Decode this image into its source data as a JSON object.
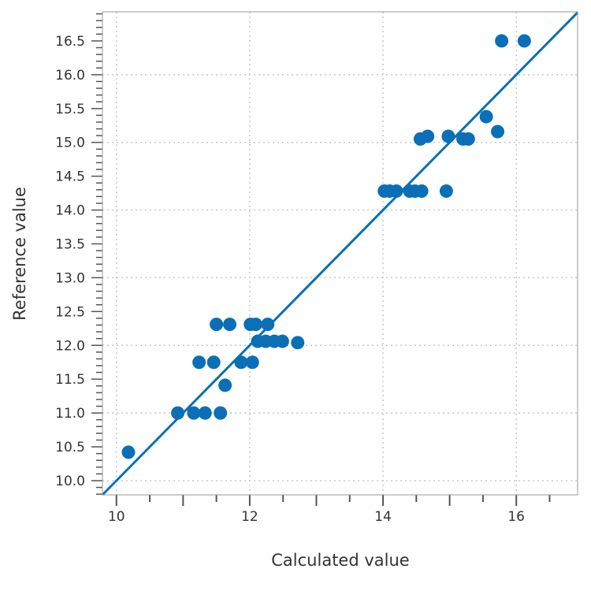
{
  "chart_data": {
    "type": "scatter",
    "xlabel": "Calculated value",
    "ylabel": "Reference value",
    "xlim": [
      9.79,
      16.92
    ],
    "ylim": [
      9.79,
      16.93
    ],
    "x_ticks": [
      "10",
      "12",
      "14",
      "16"
    ],
    "y_ticks": [
      "10.0",
      "10.5",
      "11.0",
      "11.5",
      "12.0",
      "12.5",
      "13.0",
      "13.5",
      "14.0",
      "14.5",
      "15.0",
      "15.5",
      "16.0",
      "16.5"
    ],
    "grid": true,
    "reference_line": "y = x",
    "color": "#0a6fb6",
    "points": [
      {
        "x": 10.18,
        "y": 10.42
      },
      {
        "x": 10.92,
        "y": 11.0
      },
      {
        "x": 11.16,
        "y": 11.0
      },
      {
        "x": 11.33,
        "y": 11.0
      },
      {
        "x": 11.56,
        "y": 11.0
      },
      {
        "x": 11.63,
        "y": 11.41
      },
      {
        "x": 11.24,
        "y": 11.75
      },
      {
        "x": 11.46,
        "y": 11.75
      },
      {
        "x": 11.87,
        "y": 11.75
      },
      {
        "x": 12.04,
        "y": 11.75
      },
      {
        "x": 11.5,
        "y": 12.31
      },
      {
        "x": 11.7,
        "y": 12.31
      },
      {
        "x": 12.01,
        "y": 12.31
      },
      {
        "x": 12.09,
        "y": 12.31
      },
      {
        "x": 12.27,
        "y": 12.31
      },
      {
        "x": 12.12,
        "y": 12.06
      },
      {
        "x": 12.24,
        "y": 12.06
      },
      {
        "x": 12.37,
        "y": 12.06
      },
      {
        "x": 12.49,
        "y": 12.06
      },
      {
        "x": 12.72,
        "y": 12.04
      },
      {
        "x": 14.02,
        "y": 14.28
      },
      {
        "x": 14.1,
        "y": 14.28
      },
      {
        "x": 14.2,
        "y": 14.28
      },
      {
        "x": 14.4,
        "y": 14.28
      },
      {
        "x": 14.48,
        "y": 14.28
      },
      {
        "x": 14.58,
        "y": 14.28
      },
      {
        "x": 14.95,
        "y": 14.28
      },
      {
        "x": 14.56,
        "y": 15.05
      },
      {
        "x": 14.67,
        "y": 15.09
      },
      {
        "x": 14.98,
        "y": 15.09
      },
      {
        "x": 15.2,
        "y": 15.05
      },
      {
        "x": 15.28,
        "y": 15.05
      },
      {
        "x": 15.55,
        "y": 15.38
      },
      {
        "x": 15.72,
        "y": 15.16
      },
      {
        "x": 15.78,
        "y": 16.5
      },
      {
        "x": 16.12,
        "y": 16.5
      }
    ]
  }
}
